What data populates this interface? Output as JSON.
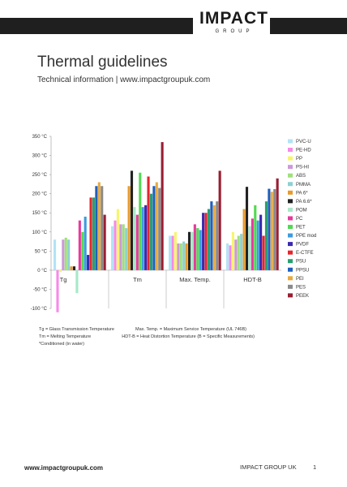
{
  "header": {
    "brand_name": "IMPACT",
    "brand_sub": "GROUP"
  },
  "page": {
    "title": "Thermal guidelines",
    "subtitle": "Technical information | www.impactgroupuk.com"
  },
  "chart_data": {
    "type": "bar",
    "categories": [
      "Tg",
      "Tm",
      "Max. Temp.",
      "HDT-B"
    ],
    "ylim": [
      -100,
      350
    ],
    "y_ticks": [
      -100,
      -50,
      0,
      50,
      100,
      150,
      200,
      250,
      300,
      350
    ],
    "y_unit": "°C",
    "grid": false,
    "legend_position": "right",
    "series": [
      {
        "name": "PVC-U",
        "color": "#b3e3f5",
        "values": [
          80,
          115,
          90,
          70
        ]
      },
      {
        "name": "PE-HD",
        "color": "#f58ae8",
        "values": [
          -110,
          130,
          90,
          65
        ]
      },
      {
        "name": "PP",
        "color": "#f7f56b",
        "values": [
          -5,
          160,
          100,
          100
        ]
      },
      {
        "name": "PS-HI",
        "color": "#cc99d9",
        "values": [
          80,
          120,
          70,
          80
        ]
      },
      {
        "name": "ABS",
        "color": "#9fe07a",
        "values": [
          85,
          120,
          70,
          90
        ]
      },
      {
        "name": "PMMA",
        "color": "#8fd1d1",
        "values": [
          80,
          110,
          75,
          95
        ]
      },
      {
        "name": "PA 6*",
        "color": "#e89a2c",
        "values": [
          10,
          220,
          70,
          160
        ]
      },
      {
        "name": "PA 6.6*",
        "color": "#222222",
        "values": [
          10,
          260,
          100,
          218
        ]
      },
      {
        "name": "POM",
        "color": "#a8e8c8",
        "values": [
          -60,
          165,
          100,
          115
        ]
      },
      {
        "name": "PC",
        "color": "#e8399c",
        "values": [
          130,
          145,
          120,
          135
        ]
      },
      {
        "name": "PET",
        "color": "#52d952",
        "values": [
          100,
          255,
          110,
          170
        ]
      },
      {
        "name": "PPE mod",
        "color": "#3d9be0",
        "values": [
          140,
          165,
          105,
          130
        ]
      },
      {
        "name": "PVDF",
        "color": "#3a2ab0",
        "values": [
          40,
          170,
          150,
          145
        ]
      },
      {
        "name": "E-CTFE",
        "color": "#e8232c",
        "values": [
          190,
          245,
          150,
          90
        ]
      },
      {
        "name": "PSU",
        "color": "#27a070",
        "values": [
          190,
          200,
          160,
          180
        ]
      },
      {
        "name": "PPSU",
        "color": "#1f5fc0",
        "values": [
          220,
          220,
          180,
          213
        ]
      },
      {
        "name": "PEI",
        "color": "#e8aa40",
        "values": [
          230,
          230,
          170,
          205
        ]
      },
      {
        "name": "PES",
        "color": "#8a8a8a",
        "values": [
          220,
          215,
          180,
          212
        ]
      },
      {
        "name": "PEEK",
        "color": "#9a1e32",
        "values": [
          145,
          335,
          260,
          240
        ]
      }
    ]
  },
  "notes": {
    "line1a": "Tg = Glass Transmission Temperature",
    "line1b": "Max. Temp. = Maximum Service Temperature (UL 746B)",
    "line2a": "Tm = Melting Temperature",
    "line2b": "HDT-B = Heat Distortion Temperature (B = Specific Measurements)",
    "line3": "*Conditioned (in water)"
  },
  "footer": {
    "url": "www.impactgroupuk.com",
    "company": "IMPACT GROUP UK",
    "page_number": "1"
  }
}
